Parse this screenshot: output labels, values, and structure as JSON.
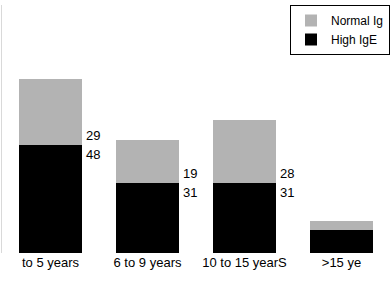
{
  "chart_data": {
    "type": "bar",
    "stacked": true,
    "categories": [
      "to 5 years",
      "6 to 9 years",
      "10 to 15 yearS",
      ">15 ye"
    ],
    "series": [
      {
        "name": "High IgE",
        "color": "#000000",
        "values": [
          48,
          31,
          31,
          10
        ],
        "value_labels": [
          "48",
          "31",
          "31",
          null
        ]
      },
      {
        "name": "Normal Ig",
        "color": "#b3b3b3",
        "values": [
          29,
          19,
          28,
          4
        ],
        "value_labels": [
          "29",
          "19",
          "28",
          null
        ]
      }
    ],
    "ylim": [
      0,
      110
    ],
    "yticks": [],
    "tick_labels": "x",
    "data_labels": true,
    "legend": "top-right",
    "grid": false
  }
}
